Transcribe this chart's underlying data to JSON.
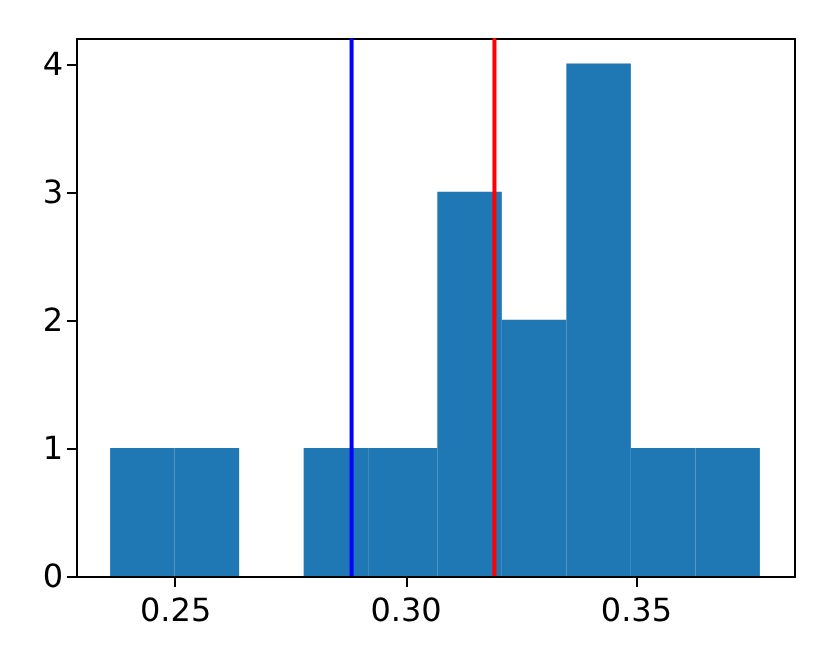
{
  "chart_data": {
    "type": "histogram",
    "bins": [
      0.236,
      0.25,
      0.264,
      0.278,
      0.292,
      0.307,
      0.321,
      0.335,
      0.349,
      0.363,
      0.377
    ],
    "values": [
      1,
      1,
      0,
      1,
      1,
      3,
      2,
      4,
      1,
      1
    ],
    "color": "#1f77b4",
    "xlim": [
      0.2286,
      0.3844
    ],
    "xticks": [
      {
        "value": 0.25,
        "label": "0.25"
      },
      {
        "value": 0.3,
        "label": "0.30"
      },
      {
        "value": 0.35,
        "label": "0.35"
      }
    ],
    "ylim": [
      0,
      4.2
    ],
    "yticks": [
      0,
      1,
      2,
      3,
      4
    ],
    "ref_lines": [
      {
        "axis": "x",
        "value": 0.2884,
        "color": "#0000ff"
      },
      {
        "axis": "x",
        "value": 0.3194,
        "color": "#ff0000"
      }
    ],
    "grid": false
  }
}
